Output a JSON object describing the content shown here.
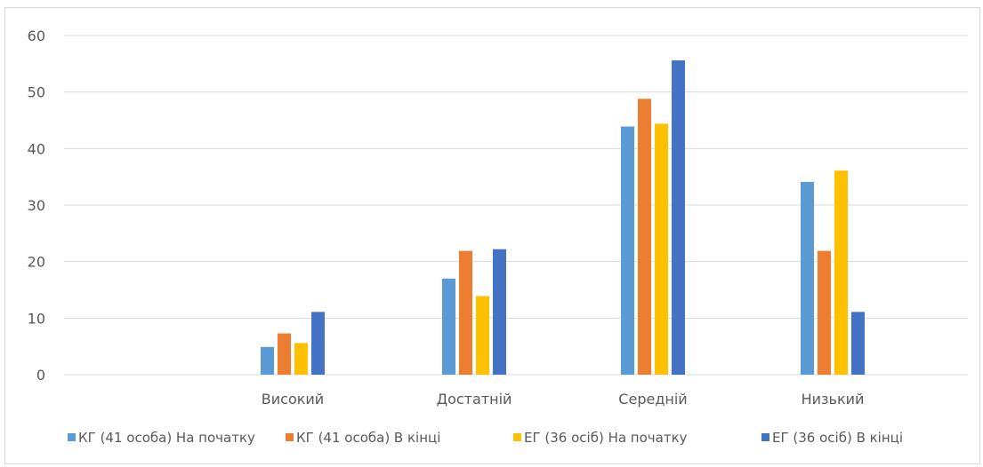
{
  "chart_data": {
    "type": "bar",
    "categories": [
      "Високий",
      "Достатній",
      "Середній",
      "Низький"
    ],
    "series": [
      {
        "name": "КГ (41 особа) На початку",
        "color": "#5b9bd5",
        "values": [
          4.9,
          17.0,
          43.9,
          34.1
        ]
      },
      {
        "name": "КГ (41 особа) В кінці",
        "color": "#ed7d31",
        "values": [
          7.3,
          21.9,
          48.8,
          21.9
        ]
      },
      {
        "name": "ЕГ (36 осіб) На початку",
        "color": "#ffc000",
        "values": [
          5.6,
          13.9,
          44.4,
          36.1
        ]
      },
      {
        "name": "ЕГ (36 осіб) В кінці",
        "color": "#4472c4",
        "values": [
          11.1,
          22.2,
          55.6,
          11.1
        ]
      }
    ],
    "y_ticks": [
      "0",
      "10",
      "20",
      "30",
      "40",
      "50",
      "60"
    ],
    "ylim": [
      0,
      60
    ],
    "grid": true,
    "legend_position": "bottom"
  }
}
